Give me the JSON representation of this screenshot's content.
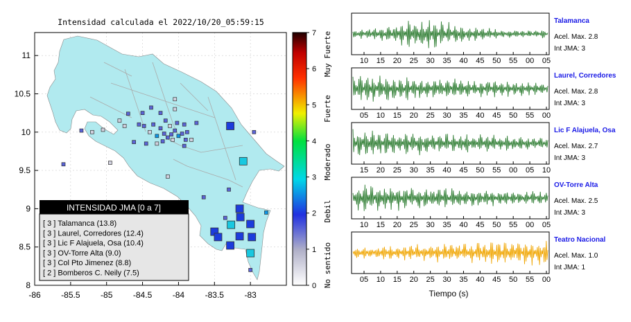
{
  "map": {
    "title": "Intensidad calculada el 2022/10/20_05:59:15",
    "x_ticks": [
      "-86",
      "-85.5",
      "-85",
      "-84.5",
      "-84",
      "-83.5",
      "-83"
    ],
    "y_ticks": [
      "11",
      "10.5",
      "10",
      "9.5",
      "9",
      "8.5",
      "8"
    ],
    "legend": {
      "title": "INTENSIDAD JMA [0 a 7]",
      "items": [
        "[ 3 ]  Talamanca (13.8)",
        "[ 3 ]  Laurel, Corredores (12.4)",
        "[ 3 ]  Lic F Alajuela, Osa (10.4)",
        "[ 3 ]  OV-Torre Alta (9.0)",
        "[ 3 ]  Col Pto Jimenez (8.8)",
        "[ 2 ]  Bomberos C. Neily (7.5)"
      ]
    }
  },
  "colorbar": {
    "ticks": [
      "0",
      "1",
      "2",
      "3",
      "4",
      "5",
      "6",
      "7"
    ],
    "labels": [
      "No sentido",
      "Debil",
      "Moderado",
      "Fuerte",
      "Muy Fuerte"
    ]
  },
  "waveforms": {
    "xlabel": "Tiempo (s)",
    "panels": [
      {
        "station": "Talamanca",
        "accel": "Acel. Max. 2.8",
        "int": "Int JMA: 3",
        "color": "#2e7d32",
        "ticks": [
          "10",
          "15",
          "20",
          "25",
          "30",
          "35",
          "40",
          "45",
          "50",
          "55",
          "00",
          "05"
        ]
      },
      {
        "station": "Laurel, Corredores",
        "accel": "Acel. Max. 2.8",
        "int": "Int JMA: 3",
        "color": "#2e7d32",
        "ticks": [
          "05",
          "10",
          "15",
          "20",
          "25",
          "30",
          "35",
          "40",
          "45",
          "50",
          "55",
          "00"
        ]
      },
      {
        "station": "Lic F Alajuela, Osa",
        "accel": "Acel. Max. 2.7",
        "int": "Int JMA: 3",
        "color": "#2e7d32",
        "ticks": [
          "15",
          "20",
          "25",
          "30",
          "35",
          "40",
          "45",
          "50",
          "55",
          "00",
          "05",
          "10"
        ]
      },
      {
        "station": "OV-Torre Alta",
        "accel": "Acel. Max. 2.5",
        "int": "Int JMA: 3",
        "color": "#2e7d32",
        "ticks": [
          "10",
          "15",
          "20",
          "25",
          "30",
          "35",
          "40",
          "45",
          "50",
          "55",
          "00",
          "05"
        ]
      },
      {
        "station": "Teatro Nacional",
        "accel": "Acel. Max. 1.0",
        "int": "Int JMA: 1",
        "color": "#f0a500",
        "ticks": [
          "05",
          "10",
          "15",
          "20",
          "25",
          "30",
          "35",
          "40",
          "45",
          "50",
          "55",
          "00"
        ]
      }
    ]
  },
  "chart_data": {
    "type": "scatter",
    "title": "Intensidad calculada el 2022/10/20_05:59:15",
    "xlabel": "",
    "ylabel": "",
    "xlim": [
      -86,
      -82.5
    ],
    "ylim": [
      8,
      11.3
    ],
    "colorbar": {
      "range": [
        0,
        7
      ],
      "labels": [
        "No sentido",
        "Debil",
        "Moderado",
        "Fuerte",
        "Muy Fuerte"
      ]
    },
    "stations_large": [
      {
        "lon": -83.1,
        "lat": 9.62,
        "int": 3
      },
      {
        "lon": -83.28,
        "lat": 10.08,
        "int": 2
      },
      {
        "lon": -83.15,
        "lat": 9.0,
        "int": 2
      },
      {
        "lon": -83.14,
        "lat": 8.89,
        "int": 2
      },
      {
        "lon": -83.27,
        "lat": 8.79,
        "int": 3
      },
      {
        "lon": -83.0,
        "lat": 8.8,
        "int": 2
      },
      {
        "lon": -83.5,
        "lat": 8.7,
        "int": 2
      },
      {
        "lon": -83.45,
        "lat": 8.63,
        "int": 2
      },
      {
        "lon": -83.15,
        "lat": 8.64,
        "int": 2
      },
      {
        "lon": -82.98,
        "lat": 8.63,
        "int": 2
      },
      {
        "lon": -83.28,
        "lat": 8.52,
        "int": 2
      },
      {
        "lon": -83.0,
        "lat": 8.42,
        "int": 3
      }
    ],
    "stations_small": [
      {
        "lon": -84.05,
        "lat": 10.02,
        "int": 1
      },
      {
        "lon": -84.1,
        "lat": 9.97,
        "int": 1
      },
      {
        "lon": -84.0,
        "lat": 9.95,
        "int": 2
      },
      {
        "lon": -84.15,
        "lat": 9.93,
        "int": 1
      },
      {
        "lon": -84.2,
        "lat": 9.98,
        "int": 1
      },
      {
        "lon": -83.95,
        "lat": 9.98,
        "int": 1
      },
      {
        "lon": -84.08,
        "lat": 9.9,
        "int": 0
      },
      {
        "lon": -84.25,
        "lat": 10.05,
        "int": 1
      },
      {
        "lon": -84.3,
        "lat": 9.95,
        "int": 2
      },
      {
        "lon": -84.22,
        "lat": 9.88,
        "int": 1
      },
      {
        "lon": -83.9,
        "lat": 9.9,
        "int": 1
      },
      {
        "lon": -83.88,
        "lat": 10.0,
        "int": 1
      },
      {
        "lon": -84.12,
        "lat": 10.08,
        "int": 0
      },
      {
        "lon": -84.02,
        "lat": 10.12,
        "int": 1
      },
      {
        "lon": -84.35,
        "lat": 10.1,
        "int": 1
      },
      {
        "lon": -84.4,
        "lat": 10.0,
        "int": 0
      },
      {
        "lon": -84.48,
        "lat": 10.08,
        "int": 1
      },
      {
        "lon": -84.45,
        "lat": 9.85,
        "int": 1
      },
      {
        "lon": -84.3,
        "lat": 9.85,
        "int": 0
      },
      {
        "lon": -83.82,
        "lat": 9.9,
        "int": 0
      },
      {
        "lon": -83.92,
        "lat": 10.1,
        "int": 1
      },
      {
        "lon": -84.18,
        "lat": 10.15,
        "int": 1
      },
      {
        "lon": -84.05,
        "lat": 10.3,
        "int": 0
      },
      {
        "lon": -84.25,
        "lat": 10.25,
        "int": 1
      },
      {
        "lon": -84.5,
        "lat": 10.25,
        "int": 1
      },
      {
        "lon": -84.55,
        "lat": 10.1,
        "int": 1
      },
      {
        "lon": -84.75,
        "lat": 10.08,
        "int": 0
      },
      {
        "lon": -84.82,
        "lat": 10.15,
        "int": 0
      },
      {
        "lon": -84.62,
        "lat": 9.87,
        "int": 1
      },
      {
        "lon": -83.75,
        "lat": 10.12,
        "int": 1
      },
      {
        "lon": -84.05,
        "lat": 10.43,
        "int": 0
      },
      {
        "lon": -84.38,
        "lat": 10.32,
        "int": 1
      },
      {
        "lon": -85.2,
        "lat": 10.0,
        "int": 0
      },
      {
        "lon": -85.35,
        "lat": 10.02,
        "int": 1
      },
      {
        "lon": -85.05,
        "lat": 10.03,
        "int": 0
      },
      {
        "lon": -85.6,
        "lat": 9.58,
        "int": 1
      },
      {
        "lon": -84.95,
        "lat": 9.6,
        "int": 0
      },
      {
        "lon": -84.15,
        "lat": 9.42,
        "int": 0
      },
      {
        "lon": -82.95,
        "lat": 10.0,
        "int": 1
      },
      {
        "lon": -83.92,
        "lat": 9.82,
        "int": 1
      },
      {
        "lon": -82.78,
        "lat": 8.95,
        "int": 2
      },
      {
        "lon": -83.3,
        "lat": 9.25,
        "int": 1
      },
      {
        "lon": -83.65,
        "lat": 9.15,
        "int": 1
      },
      {
        "lon": -83.35,
        "lat": 8.88,
        "int": 1
      },
      {
        "lon": -83.0,
        "lat": 8.2,
        "int": 1
      },
      {
        "lon": -84.7,
        "lat": 10.24,
        "int": 1
      }
    ]
  }
}
